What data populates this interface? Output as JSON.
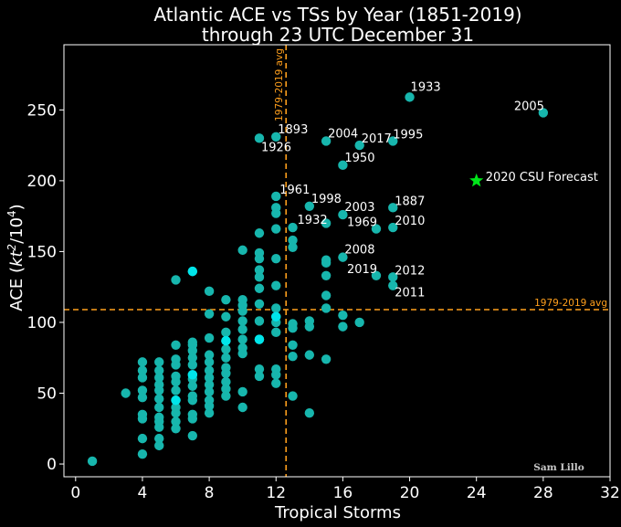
{
  "chart_data": {
    "type": "scatter",
    "title": [
      "Atlantic ACE vs TSs by Year (1851-2019)",
      "through 23 UTC December 31"
    ],
    "xlabel": "Tropical Storms",
    "ylabel": "ACE (kt²/10⁴)",
    "ylabel_parts": {
      "base": "ACE (",
      "kt": "kt",
      "sq": "2",
      "slash": "/10",
      "exp": "4",
      "close": ")"
    },
    "xlim": [
      -0.7,
      32.0
    ],
    "ylim": [
      -9,
      296
    ],
    "xticks": [
      0,
      4,
      8,
      12,
      16,
      20,
      24,
      28,
      32
    ],
    "yticks": [
      0,
      50,
      100,
      150,
      200,
      250
    ],
    "reference_lines": {
      "x": 12.6,
      "y": 109,
      "label": "1979-2019 avg",
      "color": "#ff9f1c"
    },
    "colors": {
      "points": "#17b6ad",
      "points_highlight": "#00e5ea",
      "star": "#00e61a",
      "frame": "#ffffff"
    },
    "points": [
      {
        "x": 1,
        "y": 2
      },
      {
        "x": 3,
        "y": 50
      },
      {
        "x": 4,
        "y": 7
      },
      {
        "x": 4,
        "y": 18
      },
      {
        "x": 4,
        "y": 32
      },
      {
        "x": 4,
        "y": 35
      },
      {
        "x": 4,
        "y": 47
      },
      {
        "x": 4,
        "y": 52
      },
      {
        "x": 4,
        "y": 61
      },
      {
        "x": 4,
        "y": 66
      },
      {
        "x": 4,
        "y": 72
      },
      {
        "x": 5,
        "y": 13
      },
      {
        "x": 5,
        "y": 18
      },
      {
        "x": 5,
        "y": 26
      },
      {
        "x": 5,
        "y": 30
      },
      {
        "x": 5,
        "y": 33
      },
      {
        "x": 5,
        "y": 40
      },
      {
        "x": 5,
        "y": 46
      },
      {
        "x": 5,
        "y": 52
      },
      {
        "x": 5,
        "y": 56
      },
      {
        "x": 5,
        "y": 61
      },
      {
        "x": 5,
        "y": 66
      },
      {
        "x": 5,
        "y": 72
      },
      {
        "x": 6,
        "y": 25
      },
      {
        "x": 6,
        "y": 30
      },
      {
        "x": 6,
        "y": 36
      },
      {
        "x": 6,
        "y": 40
      },
      {
        "x": 6,
        "y": 45
      },
      {
        "x": 6,
        "y": 52
      },
      {
        "x": 6,
        "y": 58
      },
      {
        "x": 6,
        "y": 62
      },
      {
        "x": 6,
        "y": 70
      },
      {
        "x": 6,
        "y": 74
      },
      {
        "x": 6,
        "y": 84
      },
      {
        "x": 6,
        "y": 130
      },
      {
        "x": 7,
        "y": 20
      },
      {
        "x": 7,
        "y": 32
      },
      {
        "x": 7,
        "y": 35
      },
      {
        "x": 7,
        "y": 45
      },
      {
        "x": 7,
        "y": 48
      },
      {
        "x": 7,
        "y": 55
      },
      {
        "x": 7,
        "y": 60
      },
      {
        "x": 7,
        "y": 63
      },
      {
        "x": 7,
        "y": 70
      },
      {
        "x": 7,
        "y": 75
      },
      {
        "x": 7,
        "y": 80
      },
      {
        "x": 7,
        "y": 84
      },
      {
        "x": 7,
        "y": 86
      },
      {
        "x": 7,
        "y": 136
      },
      {
        "x": 8,
        "y": 36
      },
      {
        "x": 8,
        "y": 41
      },
      {
        "x": 8,
        "y": 45
      },
      {
        "x": 8,
        "y": 51
      },
      {
        "x": 8,
        "y": 56
      },
      {
        "x": 8,
        "y": 61
      },
      {
        "x": 8,
        "y": 66
      },
      {
        "x": 8,
        "y": 72
      },
      {
        "x": 8,
        "y": 77
      },
      {
        "x": 8,
        "y": 89
      },
      {
        "x": 8,
        "y": 106
      },
      {
        "x": 8,
        "y": 122
      },
      {
        "x": 9,
        "y": 48
      },
      {
        "x": 9,
        "y": 53
      },
      {
        "x": 9,
        "y": 58
      },
      {
        "x": 9,
        "y": 64
      },
      {
        "x": 9,
        "y": 68
      },
      {
        "x": 9,
        "y": 75
      },
      {
        "x": 9,
        "y": 81
      },
      {
        "x": 9,
        "y": 87
      },
      {
        "x": 9,
        "y": 93
      },
      {
        "x": 9,
        "y": 104
      },
      {
        "x": 9,
        "y": 116
      },
      {
        "x": 10,
        "y": 40
      },
      {
        "x": 10,
        "y": 51
      },
      {
        "x": 10,
        "y": 78
      },
      {
        "x": 10,
        "y": 82
      },
      {
        "x": 10,
        "y": 88
      },
      {
        "x": 10,
        "y": 95
      },
      {
        "x": 10,
        "y": 101
      },
      {
        "x": 10,
        "y": 108
      },
      {
        "x": 10,
        "y": 112
      },
      {
        "x": 10,
        "y": 116
      },
      {
        "x": 10,
        "y": 151
      },
      {
        "x": 11,
        "y": 62
      },
      {
        "x": 11,
        "y": 67
      },
      {
        "x": 11,
        "y": 88
      },
      {
        "x": 11,
        "y": 101
      },
      {
        "x": 11,
        "y": 113
      },
      {
        "x": 11,
        "y": 124
      },
      {
        "x": 11,
        "y": 132
      },
      {
        "x": 11,
        "y": 137
      },
      {
        "x": 11,
        "y": 145
      },
      {
        "x": 11,
        "y": 149
      },
      {
        "x": 11,
        "y": 163
      },
      {
        "x": 11,
        "y": 230
      },
      {
        "x": 12,
        "y": 57
      },
      {
        "x": 12,
        "y": 63
      },
      {
        "x": 12,
        "y": 67
      },
      {
        "x": 12,
        "y": 93
      },
      {
        "x": 12,
        "y": 100
      },
      {
        "x": 12,
        "y": 104
      },
      {
        "x": 12,
        "y": 110
      },
      {
        "x": 12,
        "y": 126
      },
      {
        "x": 12,
        "y": 145
      },
      {
        "x": 12,
        "y": 166
      },
      {
        "x": 12,
        "y": 177
      },
      {
        "x": 12,
        "y": 181
      },
      {
        "x": 12,
        "y": 189
      },
      {
        "x": 12,
        "y": 231
      },
      {
        "x": 13,
        "y": 48
      },
      {
        "x": 13,
        "y": 76
      },
      {
        "x": 13,
        "y": 84
      },
      {
        "x": 13,
        "y": 96
      },
      {
        "x": 13,
        "y": 99
      },
      {
        "x": 13,
        "y": 153
      },
      {
        "x": 13,
        "y": 158
      },
      {
        "x": 13,
        "y": 167
      },
      {
        "x": 14,
        "y": 36
      },
      {
        "x": 14,
        "y": 77
      },
      {
        "x": 14,
        "y": 97
      },
      {
        "x": 14,
        "y": 101
      },
      {
        "x": 14,
        "y": 182
      },
      {
        "x": 15,
        "y": 74
      },
      {
        "x": 15,
        "y": 110
      },
      {
        "x": 15,
        "y": 119
      },
      {
        "x": 15,
        "y": 133
      },
      {
        "x": 15,
        "y": 142
      },
      {
        "x": 15,
        "y": 144
      },
      {
        "x": 15,
        "y": 170
      },
      {
        "x": 15,
        "y": 228
      },
      {
        "x": 16,
        "y": 97
      },
      {
        "x": 16,
        "y": 105
      },
      {
        "x": 16,
        "y": 146
      },
      {
        "x": 16,
        "y": 176
      },
      {
        "x": 16,
        "y": 211
      },
      {
        "x": 17,
        "y": 100
      },
      {
        "x": 17,
        "y": 225
      },
      {
        "x": 18,
        "y": 133
      },
      {
        "x": 18,
        "y": 166
      },
      {
        "x": 19,
        "y": 126
      },
      {
        "x": 19,
        "y": 132
      },
      {
        "x": 19,
        "y": 167
      },
      {
        "x": 19,
        "y": 181
      },
      {
        "x": 19,
        "y": 228
      },
      {
        "x": 20,
        "y": 259
      },
      {
        "x": 28,
        "y": 248
      }
    ],
    "highlight_points": [
      {
        "x": 7,
        "y": 136
      },
      {
        "x": 11,
        "y": 88
      },
      {
        "x": 12,
        "y": 104
      },
      {
        "x": 9,
        "y": 87
      },
      {
        "x": 6,
        "y": 45
      },
      {
        "x": 7,
        "y": 63
      }
    ],
    "annotations": [
      {
        "text": "1933",
        "x": 20,
        "y": 259,
        "dx": 1,
        "dy": -7,
        "anchor": "start"
      },
      {
        "text": "2005",
        "x": 28,
        "y": 248,
        "dx": -32,
        "dy": -3,
        "anchor": "start"
      },
      {
        "text": "1893",
        "x": 12,
        "y": 231,
        "dx": 2,
        "dy": -4,
        "anchor": "start"
      },
      {
        "text": "1926",
        "x": 11,
        "y": 230,
        "dx": 2,
        "dy": 14,
        "anchor": "start"
      },
      {
        "text": "2004",
        "x": 15,
        "y": 228,
        "dx": 2,
        "dy": -4,
        "anchor": "start"
      },
      {
        "text": "2017",
        "x": 17,
        "y": 225,
        "dx": 2,
        "dy": -3,
        "anchor": "start"
      },
      {
        "text": "1995",
        "x": 19,
        "y": 228,
        "dx": 0,
        "dy": -3,
        "anchor": "start"
      },
      {
        "text": "1950",
        "x": 16,
        "y": 211,
        "dx": 2,
        "dy": -4,
        "anchor": "start"
      },
      {
        "text": "1961",
        "x": 12,
        "y": 189,
        "dx": 4,
        "dy": -3,
        "anchor": "start"
      },
      {
        "text": "1998",
        "x": 14,
        "y": 182,
        "dx": 2,
        "dy": -4,
        "anchor": "start"
      },
      {
        "text": "2003",
        "x": 16,
        "y": 176,
        "dx": 2,
        "dy": -4,
        "anchor": "start"
      },
      {
        "text": "1887",
        "x": 19,
        "y": 181,
        "dx": 2,
        "dy": -3,
        "anchor": "start"
      },
      {
        "text": "1932",
        "x": 13,
        "y": 167,
        "dx": 5,
        "dy": -4,
        "anchor": "start"
      },
      {
        "text": "1969",
        "x": 18,
        "y": 166,
        "dx": -32,
        "dy": -3,
        "anchor": "start"
      },
      {
        "text": "2010",
        "x": 19,
        "y": 167,
        "dx": 2,
        "dy": -3,
        "anchor": "start"
      },
      {
        "text": "2008",
        "x": 16,
        "y": 146,
        "dx": 2,
        "dy": -4,
        "anchor": "start"
      },
      {
        "text": "2019",
        "x": 18,
        "y": 133,
        "dx": -32,
        "dy": -3,
        "anchor": "start"
      },
      {
        "text": "2012",
        "x": 19,
        "y": 132,
        "dx": 2,
        "dy": -3,
        "anchor": "start"
      },
      {
        "text": "2011",
        "x": 19,
        "y": 126,
        "dx": 2,
        "dy": 12,
        "anchor": "start"
      }
    ],
    "forecast": {
      "label": "2020 CSU Forecast",
      "x": 24,
      "y": 200
    },
    "credit": "Sam Lillo"
  }
}
